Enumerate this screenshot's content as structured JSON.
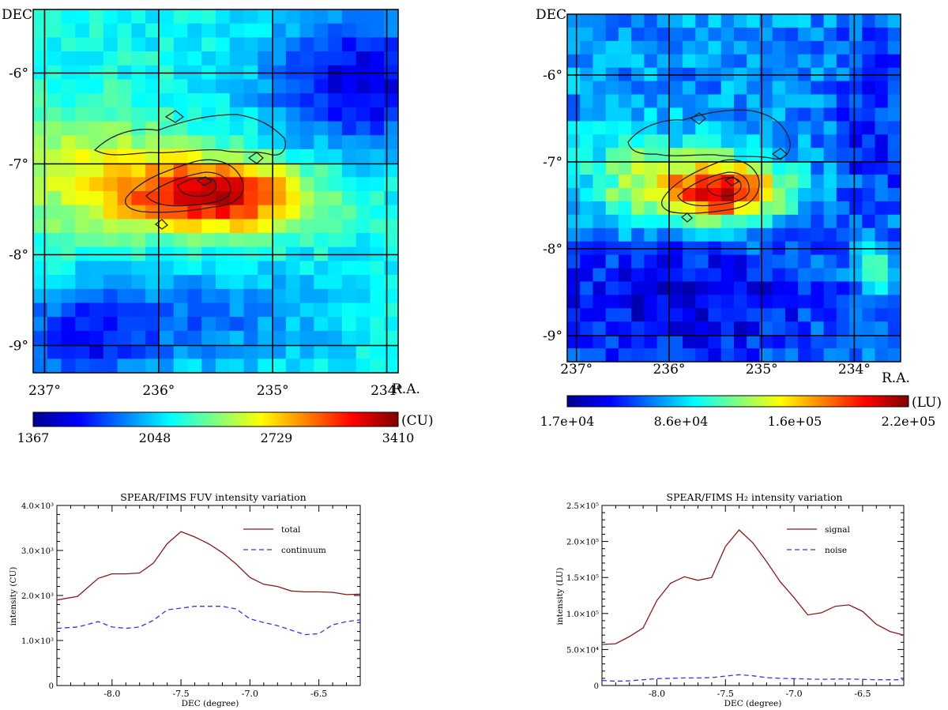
{
  "chart_data": [
    {
      "type": "heatmap",
      "id": "fuv-map",
      "ylabel": "DEC",
      "xlabel": "R.A.",
      "x_ticks": [
        "237°",
        "236°",
        "235°",
        "234°"
      ],
      "x_tick_values": [
        237,
        236,
        235,
        234
      ],
      "y_ticks": [
        "-6°",
        "-7°",
        "-8°",
        "-9°"
      ],
      "y_tick_values": [
        -6,
        -7,
        -8,
        -9
      ],
      "xlim": [
        237.1,
        233.9
      ],
      "ylim": [
        -9.3,
        -5.3
      ],
      "colorbar": {
        "unit": "(CU)",
        "ticks": [
          "1367",
          "2048",
          "2729",
          "3410"
        ],
        "range": [
          1367,
          3410
        ]
      },
      "peak": {
        "ra": 235.5,
        "dec": -7.35
      },
      "colors": {
        "low": "#00008f",
        "high": "#8b0000"
      }
    },
    {
      "type": "heatmap",
      "id": "h2-map",
      "ylabel": "DEC",
      "xlabel": "R.A.",
      "x_ticks": [
        "237°",
        "236°",
        "235°",
        "234°"
      ],
      "x_tick_values": [
        237,
        236,
        235,
        234
      ],
      "y_ticks": [
        "-6°",
        "-7°",
        "-8°",
        "-9°"
      ],
      "y_tick_values": [
        -6,
        -7,
        -8,
        -9
      ],
      "xlim": [
        237.1,
        233.5
      ],
      "ylim": [
        -9.3,
        -5.3
      ],
      "colorbar": {
        "unit": "(LU)",
        "ticks": [
          "1.7e+04",
          "8.6e+04",
          "1.6e+05",
          "2.2e+05"
        ],
        "range": [
          17000,
          220000
        ]
      },
      "peak": {
        "ra": 235.4,
        "dec": -7.35
      }
    },
    {
      "type": "line",
      "id": "fuv-profile",
      "title": "SPEAR/FIMS FUV intensity variation",
      "xlabel": "DEC (degree)",
      "ylabel": "intensity (CU)",
      "xlim": [
        -8.4,
        -6.2
      ],
      "ylim": [
        0,
        4000
      ],
      "x_ticks": [
        "-8.0",
        "-7.5",
        "-7.0",
        "-6.5"
      ],
      "x_tick_values": [
        -8.0,
        -7.5,
        -7.0,
        -6.5
      ],
      "y_ticks": [
        "0",
        "1.0×10³",
        "2.0×10³",
        "3.0×10³",
        "4.0×10³"
      ],
      "y_tick_values": [
        0,
        1000,
        2000,
        3000,
        4000
      ],
      "x": [
        -8.4,
        -8.25,
        -8.1,
        -8.0,
        -7.9,
        -7.8,
        -7.7,
        -7.6,
        -7.5,
        -7.4,
        -7.3,
        -7.2,
        -7.1,
        -7.0,
        -6.9,
        -6.8,
        -6.7,
        -6.6,
        -6.5,
        -6.4,
        -6.3,
        -6.2
      ],
      "series": [
        {
          "name": "total",
          "color": "#8b1a1a",
          "dash": "solid",
          "values": [
            1900,
            1980,
            2380,
            2480,
            2480,
            2500,
            2720,
            3150,
            3420,
            3300,
            3150,
            2950,
            2700,
            2400,
            2250,
            2200,
            2100,
            2080,
            2080,
            2070,
            2020,
            2030
          ]
        },
        {
          "name": "continuum",
          "color": "#3333ff",
          "dash": "dashed",
          "values": [
            1270,
            1300,
            1420,
            1300,
            1270,
            1300,
            1450,
            1680,
            1720,
            1760,
            1760,
            1760,
            1700,
            1480,
            1400,
            1330,
            1230,
            1130,
            1150,
            1350,
            1420,
            1460
          ]
        }
      ],
      "legend": "top-right"
    },
    {
      "type": "line",
      "id": "h2-profile",
      "title": "SPEAR/FIMS H₂ intensity variation",
      "xlabel": "DEC (degree)",
      "ylabel": "intensity (LU)",
      "xlim": [
        -8.4,
        -6.2
      ],
      "ylim": [
        0,
        250000
      ],
      "x_ticks": [
        "-8.0",
        "-7.5",
        "-7.0",
        "-6.5"
      ],
      "x_tick_values": [
        -8.0,
        -7.5,
        -7.0,
        -6.5
      ],
      "y_ticks": [
        "0",
        "5.0×10⁴",
        "1.0×10⁵",
        "1.5×10⁵",
        "2.0×10⁵",
        "2.5×10⁵"
      ],
      "y_tick_values": [
        0,
        50000,
        100000,
        150000,
        200000,
        250000
      ],
      "x": [
        -8.4,
        -8.3,
        -8.2,
        -8.1,
        -8.0,
        -7.9,
        -7.8,
        -7.7,
        -7.6,
        -7.5,
        -7.4,
        -7.3,
        -7.2,
        -7.1,
        -7.0,
        -6.9,
        -6.8,
        -6.7,
        -6.6,
        -6.5,
        -6.4,
        -6.3,
        -6.2
      ],
      "series": [
        {
          "name": "signal",
          "color": "#8b1a1a",
          "dash": "solid",
          "values": [
            57000,
            58000,
            68000,
            80000,
            118000,
            142000,
            151000,
            146000,
            150000,
            193000,
            216000,
            198000,
            172000,
            144000,
            122000,
            98000,
            101000,
            110000,
            112000,
            103000,
            85000,
            75000,
            70000
          ]
        },
        {
          "name": "noise",
          "color": "#3333ff",
          "dash": "dashed",
          "values": [
            7000,
            6000,
            6500,
            8000,
            9500,
            10000,
            10500,
            10500,
            11000,
            13000,
            15000,
            13500,
            11000,
            10000,
            9500,
            9000,
            8500,
            9000,
            9000,
            8500,
            8000,
            8000,
            8000
          ]
        }
      ],
      "legend": "top-right"
    }
  ]
}
